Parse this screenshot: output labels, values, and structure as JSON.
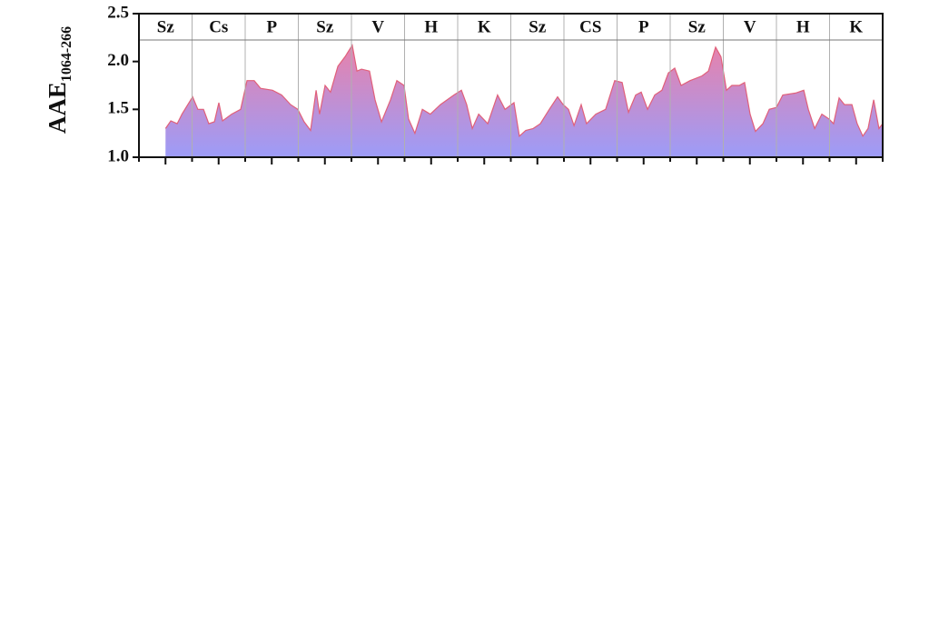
{
  "chart_data": {
    "type": "area",
    "ylabel": "AAE",
    "ylabel_subscript": "1064-266",
    "section_labels": [
      "Sz",
      "Cs",
      "P",
      "Sz",
      "V",
      "H",
      "K",
      "Sz",
      "CS",
      "P",
      "Sz",
      "V",
      "H",
      "K"
    ],
    "x": [
      1.0,
      1.2,
      1.44,
      1.62,
      2.02,
      2.22,
      2.43,
      2.63,
      2.84,
      3.01,
      3.15,
      3.49,
      3.83,
      4.07,
      4.34,
      4.58,
      5.03,
      5.37,
      5.71,
      5.98,
      6.22,
      6.46,
      6.67,
      6.8,
      7.01,
      7.21,
      7.49,
      7.76,
      8.03,
      8.21,
      8.38,
      8.68,
      8.89,
      9.13,
      9.47,
      9.71,
      9.98,
      10.15,
      10.39,
      10.67,
      10.97,
      11.35,
      11.86,
      12.14,
      12.34,
      12.55,
      12.79,
      13.13,
      13.5,
      13.78,
      14.12,
      14.32,
      14.56,
      14.84,
      15.11,
      15.45,
      15.76,
      15.97,
      16.17,
      16.38,
      16.65,
      16.85,
      17.2,
      17.57,
      17.91,
      18.19,
      18.43,
      18.7,
      18.91,
      19.15,
      19.42,
      19.69,
      19.93,
      20.17,
      20.41,
      20.75,
      21.2,
      21.44,
      21.71,
      21.91,
      22.12,
      22.32,
      22.6,
      22.8,
      23.01,
      23.21,
      23.49,
      23.73,
      24.0,
      24.24,
      24.72,
      25.03,
      25.2,
      25.44,
      25.71,
      25.98,
      26.15,
      26.36,
      26.56,
      26.84,
      27.04,
      27.25,
      27.45,
      27.66,
      27.86,
      28.0
    ],
    "values": [
      1.3,
      1.38,
      1.35,
      1.45,
      1.63,
      1.5,
      1.5,
      1.35,
      1.37,
      1.57,
      1.38,
      1.45,
      1.5,
      1.8,
      1.8,
      1.72,
      1.7,
      1.65,
      1.55,
      1.5,
      1.37,
      1.28,
      1.7,
      1.45,
      1.75,
      1.68,
      1.95,
      2.05,
      2.17,
      1.9,
      1.92,
      1.9,
      1.6,
      1.37,
      1.6,
      1.8,
      1.75,
      1.4,
      1.25,
      1.5,
      1.45,
      1.55,
      1.65,
      1.7,
      1.55,
      1.3,
      1.45,
      1.35,
      1.65,
      1.5,
      1.57,
      1.22,
      1.28,
      1.3,
      1.35,
      1.5,
      1.63,
      1.55,
      1.5,
      1.33,
      1.55,
      1.35,
      1.45,
      1.5,
      1.8,
      1.78,
      1.47,
      1.65,
      1.68,
      1.5,
      1.65,
      1.7,
      1.88,
      1.93,
      1.75,
      1.8,
      1.85,
      1.9,
      2.15,
      2.05,
      1.7,
      1.75,
      1.75,
      1.78,
      1.45,
      1.27,
      1.35,
      1.5,
      1.52,
      1.65,
      1.67,
      1.7,
      1.5,
      1.3,
      1.45,
      1.4,
      1.35,
      1.62,
      1.55,
      1.55,
      1.35,
      1.22,
      1.3,
      1.6,
      1.3,
      1.35
    ],
    "line_color": "#e0607a",
    "fill_top_color": "#f27ea0",
    "fill_bottom_color": "#9c9cf8",
    "separator_color": "#b0b0b0",
    "xlim": [
      0,
      28
    ],
    "xticks": [
      0,
      1,
      2,
      3,
      4,
      5,
      6,
      7,
      8,
      9,
      10,
      11,
      12,
      13,
      14,
      15,
      16,
      17,
      18,
      19,
      20,
      21,
      22,
      23,
      24,
      25,
      26,
      27,
      28
    ],
    "ylim": [
      1.0,
      2.5
    ],
    "yticks": [
      {
        "value": 1.0,
        "label": "1.0"
      },
      1.5,
      {
        "value": 2.0,
        "label": "2.0"
      },
      {
        "value": 2.5,
        "label": "2.5"
      }
    ]
  }
}
